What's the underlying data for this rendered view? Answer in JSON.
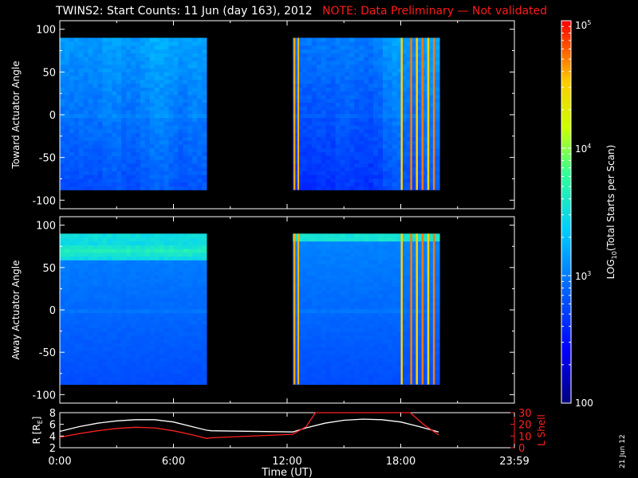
{
  "header": {
    "title": "TWINS2: Start Counts: 11 Jun (day 163), 2012",
    "note": "NOTE: Data Preliminary — Not validated"
  },
  "stamp": "21 Jun 12",
  "colors": {
    "background": "#000000",
    "axes": "#ffffff",
    "note": "#ff1a1a",
    "r_line": "#ffffff",
    "l_line": "#ff2020"
  },
  "chart_data": [
    {
      "type": "heatmap",
      "ylabel": "Toward Actuator Angle",
      "ylim": [
        -110,
        110
      ],
      "yticks": [
        100,
        50,
        0,
        -50,
        -100
      ],
      "xlim": [
        0,
        24
      ],
      "data_ranges": [
        [
          0.0,
          7.75
        ],
        [
          12.3,
          20.0
        ]
      ],
      "angle_range": [
        -88,
        90
      ],
      "log10_levels": [
        [
          2.95,
          2.95,
          2.95,
          2.95,
          3.0,
          3.0,
          2.95,
          2.95,
          3.0,
          3.05,
          3.05,
          3.0,
          2.95,
          3.0,
          3.0
        ],
        [
          2.8,
          2.8,
          2.82,
          2.8,
          2.85,
          2.85,
          2.82,
          2.8,
          2.85,
          2.95,
          3.0,
          2.95,
          2.9,
          3.0,
          3.0
        ]
      ]
    },
    {
      "type": "heatmap",
      "ylabel": "Away Actuator Angle",
      "ylim": [
        -110,
        110
      ],
      "yticks": [
        100,
        50,
        0,
        -50,
        -100
      ],
      "xlim": [
        0,
        24
      ],
      "data_ranges": [
        [
          0.0,
          7.75
        ],
        [
          12.3,
          20.0
        ]
      ],
      "angle_range": [
        -88,
        90
      ],
      "band_angle": 70,
      "band_log10": 3.6
    },
    {
      "type": "line",
      "xlabel": "Time (UT)",
      "xticks": [
        "0:00",
        "6:00",
        "12:00",
        "18:00",
        "23:59"
      ],
      "xtick_values": [
        0,
        6,
        12,
        18,
        24
      ],
      "y1label": "R [R_E]",
      "y1label_text": "R [R",
      "y1label_sub": "E",
      "y1label_end": "]",
      "y1lim": [
        2,
        8
      ],
      "y1ticks": [
        8,
        6,
        4,
        2
      ],
      "y2label": "L Shell",
      "y2lim": [
        0,
        30
      ],
      "y2ticks": [
        30,
        20,
        10,
        0
      ],
      "series": [
        {
          "name": "R [R_E]",
          "axis": "left",
          "color": "#ffffff",
          "x": [
            0,
            1,
            2,
            3,
            4,
            5,
            6,
            7,
            7.75,
            8,
            12.3,
            13,
            14,
            15,
            16,
            17,
            18,
            19,
            20
          ],
          "y": [
            4.8,
            5.6,
            6.2,
            6.6,
            6.8,
            6.8,
            6.4,
            5.6,
            5.0,
            4.9,
            4.7,
            5.4,
            6.2,
            6.7,
            6.9,
            6.8,
            6.4,
            5.6,
            4.7
          ]
        },
        {
          "name": "L Shell",
          "axis": "right",
          "color": "#ff2020",
          "x": [
            0,
            1,
            2,
            3,
            4,
            5,
            6,
            7,
            7.75,
            8,
            12.3,
            13,
            13.5,
            18.5,
            19.2,
            20
          ],
          "y": [
            9,
            12,
            14.5,
            16.5,
            17.5,
            17,
            14.5,
            11,
            8,
            8.5,
            11.5,
            18,
            30,
            30,
            20,
            11
          ]
        }
      ]
    }
  ],
  "colorbar": {
    "label": "LOG",
    "label_sub": "10",
    "label_end": "(Total Starts per Scan)",
    "scale": "log",
    "range": [
      100,
      100000
    ],
    "ticks": [
      {
        "value": 100000,
        "base": "10",
        "exp": "5"
      },
      {
        "value": 10000,
        "base": "10",
        "exp": "4"
      },
      {
        "value": 1000,
        "base": "10",
        "exp": "3"
      },
      {
        "value": 100,
        "base": "100",
        "exp": ""
      }
    ]
  }
}
